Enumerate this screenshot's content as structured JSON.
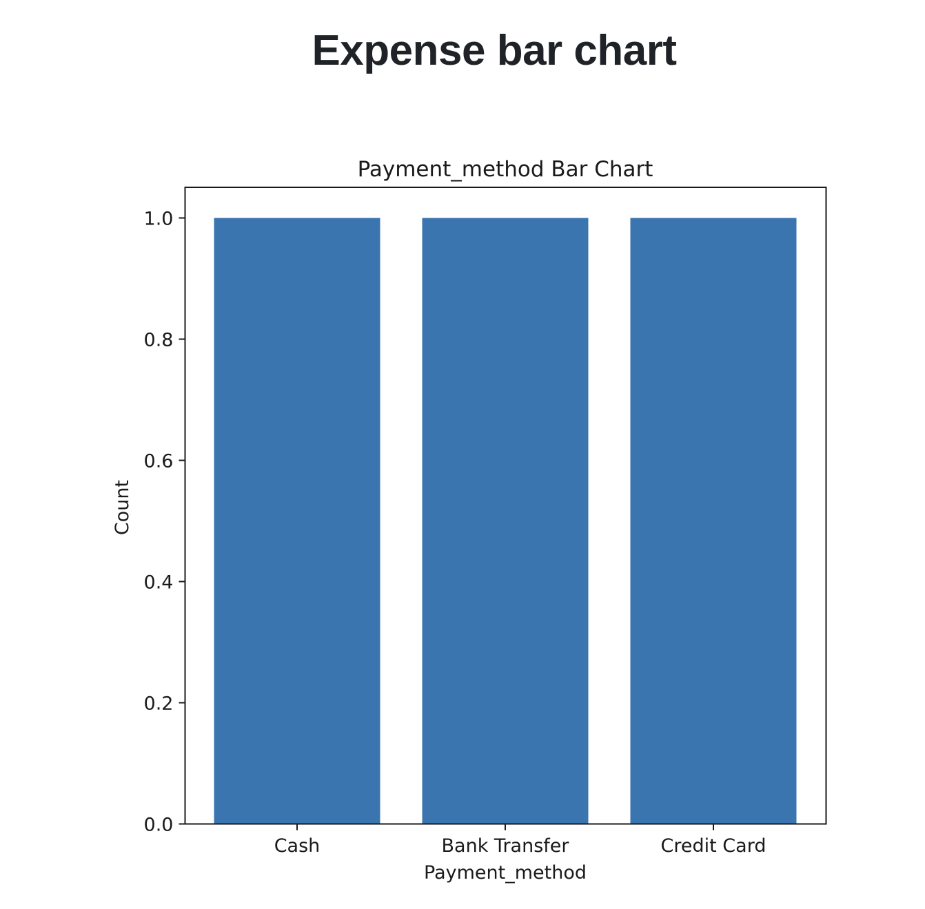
{
  "page": {
    "heading": "Expense bar chart"
  },
  "chart_data": {
    "type": "bar",
    "title": "Payment_method Bar Chart",
    "xlabel": "Payment_method",
    "ylabel": "Count",
    "categories": [
      "Cash",
      "Bank Transfer",
      "Credit Card"
    ],
    "values": [
      1,
      1,
      1
    ],
    "ylim": [
      0,
      1.05
    ],
    "yticks": [
      "0.0",
      "0.2",
      "0.4",
      "0.6",
      "0.8",
      "1.0"
    ],
    "grid": false,
    "bar_color": "#3b75af"
  }
}
